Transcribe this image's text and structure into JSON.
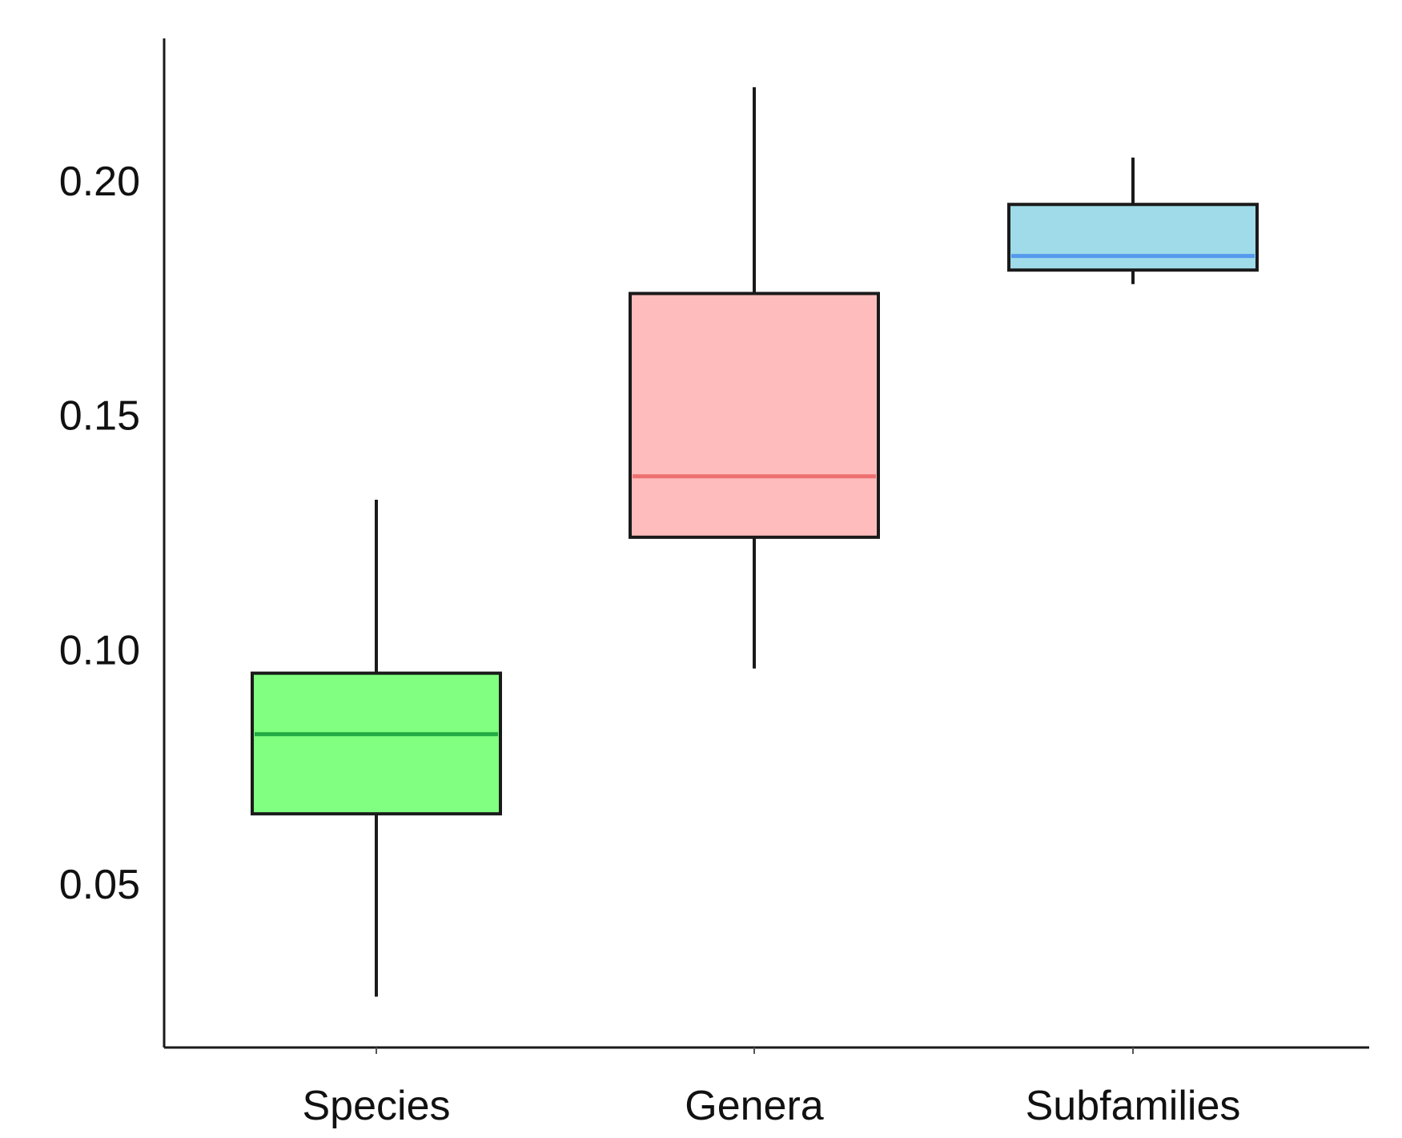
{
  "chart_data": {
    "type": "box",
    "title": "",
    "xlabel": "",
    "ylabel": "",
    "ylim": [
      0.015,
      0.23
    ],
    "yticks": [
      0.05,
      0.1,
      0.15,
      0.2
    ],
    "ytick_labels": [
      "0.05",
      "0.10",
      "0.15",
      "0.20"
    ],
    "grid": false,
    "categories": [
      "Species",
      "Genera",
      "Subfamilies"
    ],
    "boxes": [
      {
        "category": "Species",
        "min": 0.026,
        "q1": 0.065,
        "median": 0.082,
        "q3": 0.095,
        "max": 0.132,
        "fill": "#80ff80",
        "median_color": "#22aa44"
      },
      {
        "category": "Genera",
        "min": 0.096,
        "q1": 0.124,
        "median": 0.137,
        "q3": 0.176,
        "max": 0.22,
        "fill": "#ffbcbc",
        "median_color": "#ee7070"
      },
      {
        "category": "Subfamilies",
        "min": 0.178,
        "q1": 0.181,
        "median": 0.184,
        "q3": 0.195,
        "max": 0.205,
        "fill": "#9fdbe8",
        "median_color": "#5599ee"
      }
    ]
  }
}
